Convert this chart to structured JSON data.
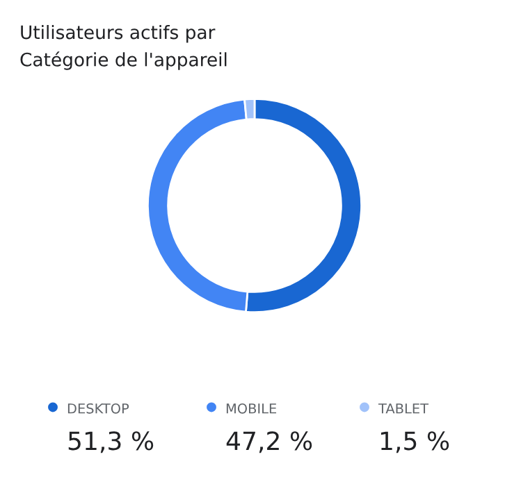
{
  "chart_data": {
    "type": "donut",
    "title": "Utilisateurs actifs par\nCatégorie de l'appareil",
    "categories": [
      "DESKTOP",
      "MOBILE",
      "TABLET"
    ],
    "values": [
      51.3,
      47.2,
      1.5
    ],
    "colors": [
      "#1967d2",
      "#4285f4",
      "#a1c2fa"
    ],
    "value_labels": [
      "51,3 %",
      "47,2 %",
      "1,5 %"
    ],
    "legend": "bottom"
  }
}
